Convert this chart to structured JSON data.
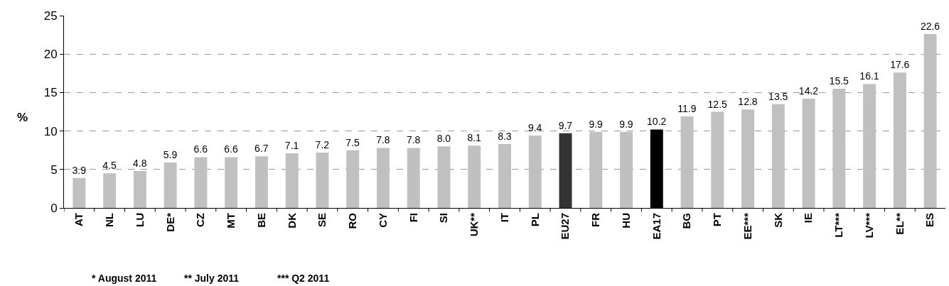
{
  "chart_data": {
    "type": "bar",
    "ylabel": "%",
    "categories": [
      "AT",
      "NL",
      "LU",
      "DE*",
      "CZ",
      "MT",
      "BE",
      "DK",
      "SE",
      "RO",
      "CY",
      "FI",
      "SI",
      "UK**",
      "IT",
      "PL",
      "EU27",
      "FR",
      "HU",
      "EA17",
      "BG",
      "PT",
      "EE***",
      "SK",
      "IE",
      "LT***",
      "LV***",
      "EL**",
      "ES"
    ],
    "values": [
      3.9,
      4.5,
      4.8,
      5.9,
      6.6,
      6.6,
      6.7,
      7.1,
      7.2,
      7.5,
      7.8,
      7.8,
      8.0,
      8.1,
      8.3,
      9.4,
      9.7,
      9.9,
      9.9,
      10.2,
      11.9,
      12.5,
      12.8,
      13.5,
      14.2,
      15.5,
      16.1,
      17.6,
      22.6
    ],
    "value_labels": [
      "3.9",
      "4.5",
      "4.8",
      "5.9",
      "6.6",
      "6.6",
      "6.7",
      "7.1",
      "7.2",
      "7.5",
      "7.8",
      "7.8",
      "8.0",
      "8.1",
      "8.3",
      "9.4",
      "9.7",
      "9.9",
      "9.9",
      "10.2",
      "11.9",
      "12.5",
      "12.8",
      "13.5",
      "14.2",
      "15.5",
      "16.1",
      "17.6",
      "22.6"
    ],
    "colors": [
      "#c0c0c0",
      "#c0c0c0",
      "#c0c0c0",
      "#c0c0c0",
      "#c0c0c0",
      "#c0c0c0",
      "#c0c0c0",
      "#c0c0c0",
      "#c0c0c0",
      "#c0c0c0",
      "#c0c0c0",
      "#c0c0c0",
      "#c0c0c0",
      "#c0c0c0",
      "#c0c0c0",
      "#c0c0c0",
      "#333333",
      "#c0c0c0",
      "#c0c0c0",
      "#000000",
      "#c0c0c0",
      "#c0c0c0",
      "#c0c0c0",
      "#c0c0c0",
      "#c0c0c0",
      "#c0c0c0",
      "#c0c0c0",
      "#c0c0c0",
      "#c0c0c0"
    ],
    "ylim": [
      0,
      25
    ],
    "yticks": [
      0,
      5,
      10,
      15,
      20,
      25
    ],
    "grid": "y",
    "annotations": [
      "* August 2011",
      "** July 2011",
      "*** Q2 2011"
    ]
  }
}
